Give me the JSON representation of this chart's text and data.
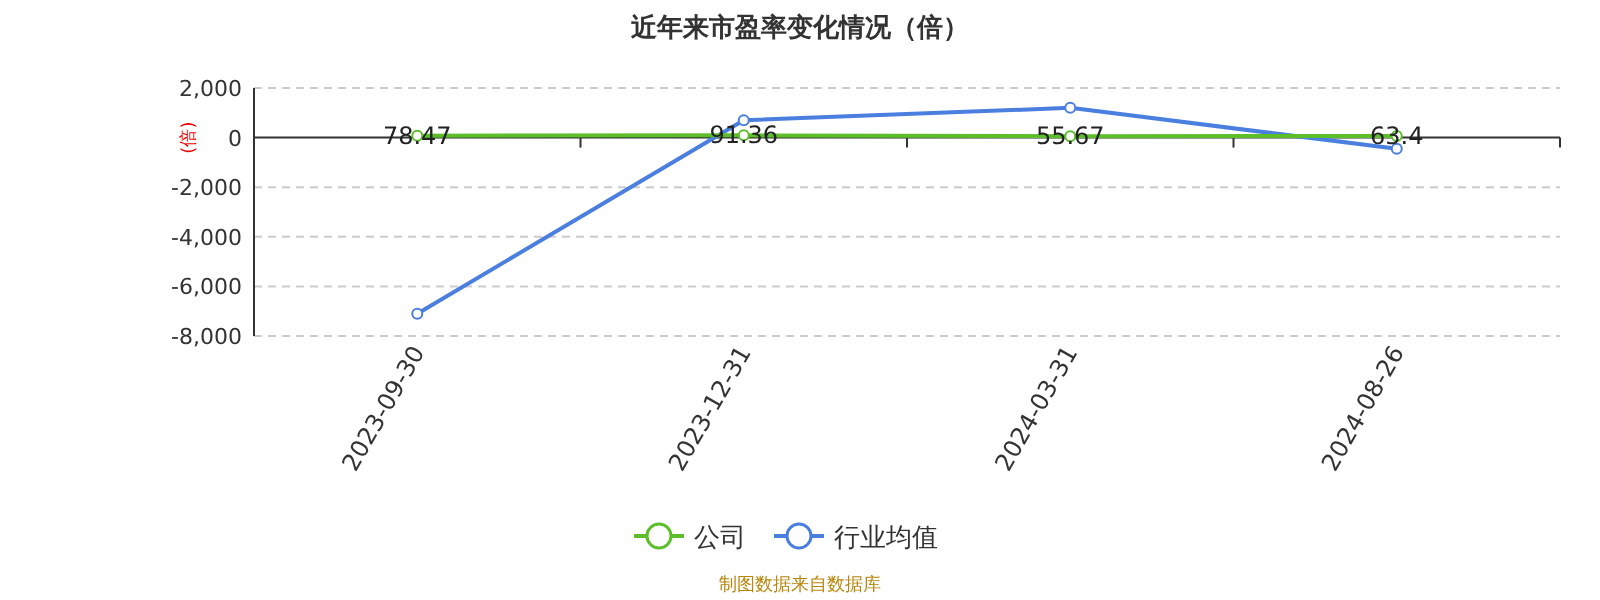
{
  "chart_data": {
    "type": "line",
    "title": "近年来市盈率变化情况（倍）",
    "ylabel": "(倍)",
    "categories": [
      "2023-09-30",
      "2023-12-31",
      "2024-03-31",
      "2024-08-26"
    ],
    "series": [
      {
        "name": "公司",
        "color": "#5cbf2a",
        "values": [
          78.47,
          91.36,
          55.67,
          63.4
        ],
        "value_labels": [
          "78.47",
          "91.36",
          "55.67",
          "63.4"
        ]
      },
      {
        "name": "行业均值",
        "color": "#4a7fe0",
        "values": [
          -7100,
          700,
          1200,
          -450
        ]
      }
    ],
    "ylim": [
      -8000,
      2000
    ],
    "yticks": [
      {
        "value": -8000,
        "label": "-8,000"
      },
      {
        "value": -6000,
        "label": "-6,000"
      },
      {
        "value": -4000,
        "label": "-4,000"
      },
      {
        "value": -2000,
        "label": "-2,000"
      },
      0,
      {
        "value": 2000,
        "label": "2,000"
      }
    ],
    "grid": "y",
    "legend": "bottom",
    "marker": "circle",
    "line_style": "solid",
    "annotations": [
      "制图数据来自数据库"
    ]
  }
}
